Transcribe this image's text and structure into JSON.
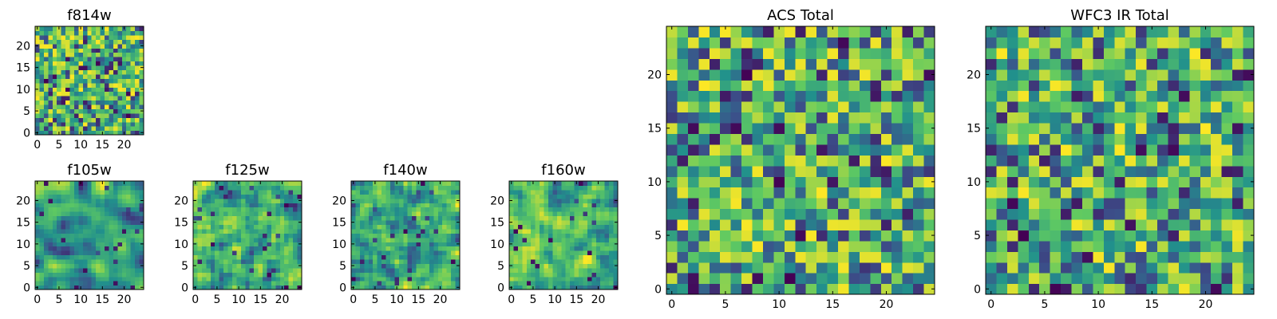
{
  "figure": {
    "colormap": [
      "#440154",
      "#3b528b",
      "#21918c",
      "#5ec962",
      "#fde725"
    ],
    "background": "#ffffff"
  },
  "chart_data": [
    {
      "type": "heatmap",
      "title": "f814w",
      "grid_shape": [
        25,
        25
      ],
      "seed": 11,
      "smooth": 0,
      "xlim": [
        0,
        24
      ],
      "ylim": [
        0,
        24
      ],
      "xticks": [
        0,
        5,
        10,
        15,
        20
      ],
      "yticks": [
        0,
        5,
        10,
        15,
        20
      ]
    },
    {
      "type": "heatmap",
      "title": "f105w",
      "grid_shape": [
        25,
        25
      ],
      "seed": 23,
      "smooth": 2,
      "xlim": [
        0,
        24
      ],
      "ylim": [
        0,
        24
      ],
      "xticks": [
        0,
        5,
        10,
        15,
        20
      ],
      "yticks": [
        0,
        5,
        10,
        15,
        20
      ]
    },
    {
      "type": "heatmap",
      "title": "f125w",
      "grid_shape": [
        25,
        25
      ],
      "seed": 37,
      "smooth": 1,
      "xlim": [
        0,
        24
      ],
      "ylim": [
        0,
        24
      ],
      "xticks": [
        0,
        5,
        10,
        15,
        20
      ],
      "yticks": [
        0,
        5,
        10,
        15,
        20
      ]
    },
    {
      "type": "heatmap",
      "title": "f140w",
      "grid_shape": [
        25,
        25
      ],
      "seed": 41,
      "smooth": 1,
      "xlim": [
        0,
        24
      ],
      "ylim": [
        0,
        24
      ],
      "xticks": [
        0,
        5,
        10,
        15,
        20
      ],
      "yticks": [
        0,
        5,
        10,
        15,
        20
      ]
    },
    {
      "type": "heatmap",
      "title": "f160w",
      "grid_shape": [
        25,
        25
      ],
      "seed": 53,
      "smooth": 1,
      "xlim": [
        0,
        24
      ],
      "ylim": [
        0,
        24
      ],
      "xticks": [
        0,
        5,
        10,
        15,
        20
      ],
      "yticks": [
        0,
        5,
        10,
        15,
        20
      ]
    },
    {
      "type": "heatmap",
      "title": "ACS Total",
      "grid_shape": [
        25,
        25
      ],
      "seed": 67,
      "smooth": 0,
      "xlim": [
        0,
        24
      ],
      "ylim": [
        0,
        24
      ],
      "xticks": [
        0,
        5,
        10,
        15,
        20
      ],
      "yticks": [
        0,
        5,
        10,
        15,
        20
      ]
    },
    {
      "type": "heatmap",
      "title": "WFC3 IR Total",
      "grid_shape": [
        25,
        25
      ],
      "seed": 79,
      "smooth": 0,
      "xlim": [
        0,
        24
      ],
      "ylim": [
        0,
        24
      ],
      "xticks": [
        0,
        5,
        10,
        15,
        20
      ],
      "yticks": [
        0,
        5,
        10,
        15,
        20
      ]
    }
  ]
}
